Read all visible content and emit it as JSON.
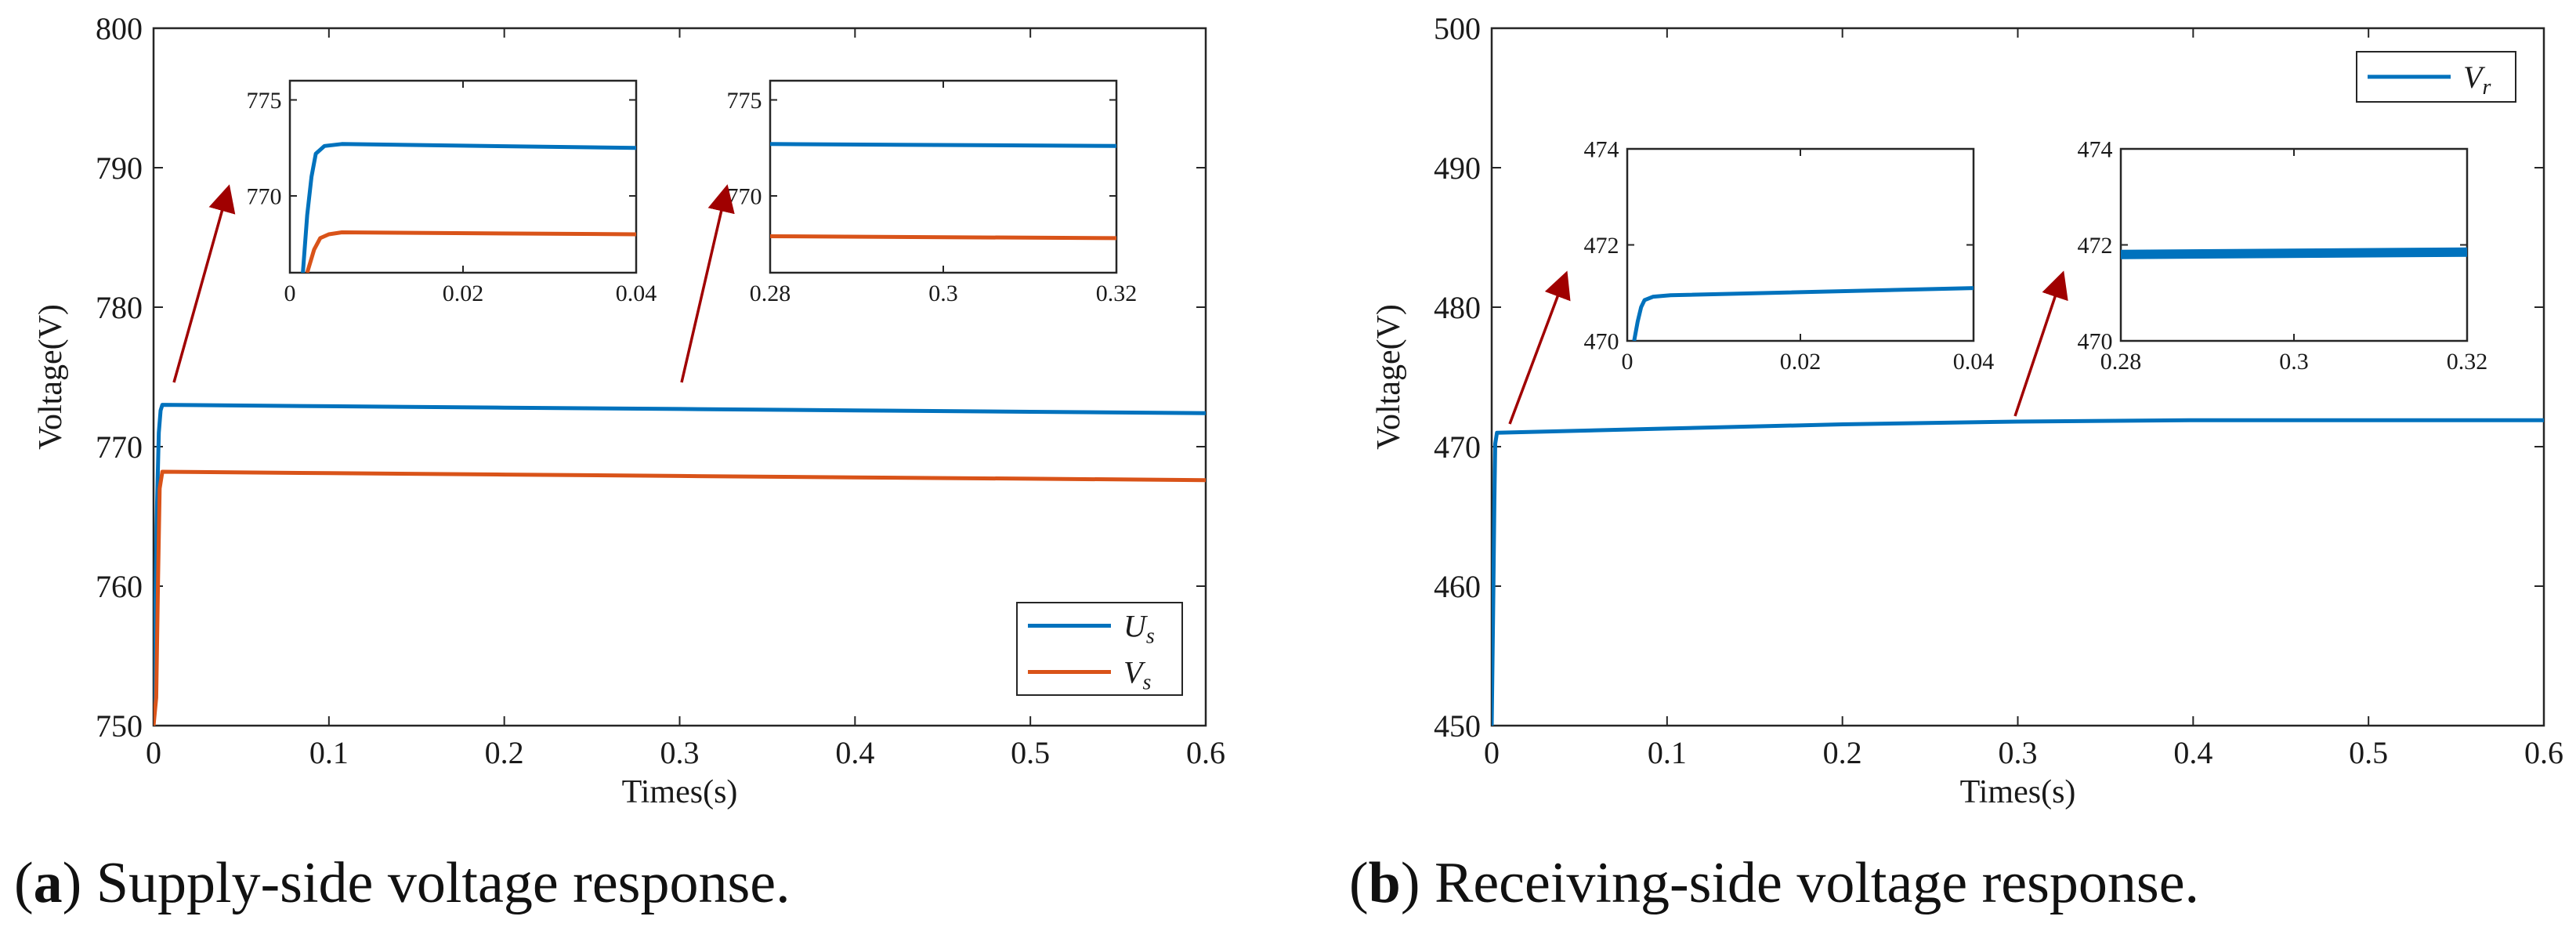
{
  "colors": {
    "blue": "#0072BD",
    "orange": "#D95319",
    "arrow": "#A00000",
    "axis": "#262626"
  },
  "chart_data": [
    {
      "id": "a",
      "type": "line",
      "caption_letter": "a",
      "caption_text": "Supply-side voltage response.",
      "xlabel": "Times(s)",
      "ylabel": "Voltage(V)",
      "xlim": [
        0,
        0.6
      ],
      "ylim": [
        750,
        800
      ],
      "xticks": [
        0,
        0.1,
        0.2,
        0.3,
        0.4,
        0.5,
        0.6
      ],
      "yticks": [
        750,
        760,
        770,
        780,
        790,
        800
      ],
      "legend_position": "bottom-right",
      "series": [
        {
          "name": "U_s",
          "legend_main": "U",
          "legend_sub": "s",
          "color": "#0072BD",
          "x": [
            0,
            0.001,
            0.002,
            0.003,
            0.004,
            0.005,
            0.1,
            0.2,
            0.3,
            0.4,
            0.5,
            0.6
          ],
          "y": [
            750,
            758,
            766,
            771,
            772.6,
            773,
            772.9,
            772.8,
            772.7,
            772.6,
            772.5,
            772.4
          ]
        },
        {
          "name": "V_s",
          "legend_main": "V",
          "legend_sub": "s",
          "color": "#D95319",
          "x": [
            0,
            0.0015,
            0.0025,
            0.0035,
            0.005,
            0.1,
            0.2,
            0.3,
            0.4,
            0.5,
            0.6
          ],
          "y": [
            750,
            752,
            760,
            767,
            768.2,
            768.1,
            768.0,
            767.9,
            767.8,
            767.7,
            767.6
          ]
        }
      ],
      "insets": [
        {
          "xlim": [
            0,
            0.04
          ],
          "ylim": [
            766,
            776
          ],
          "xticks": [
            0,
            0.02,
            0.04
          ],
          "xtick_labels": [
            "0",
            "0.02",
            "0.04"
          ],
          "yticks": [
            770,
            775
          ],
          "ytick_labels": [
            "770",
            "775"
          ],
          "series": [
            {
              "color": "#0072BD",
              "x": [
                0.0015,
                0.002,
                0.0025,
                0.003,
                0.004,
                0.006,
                0.04
              ],
              "y": [
                766,
                769,
                771,
                772.2,
                772.6,
                772.7,
                772.5
              ]
            },
            {
              "color": "#D95319",
              "x": [
                0.002,
                0.0028,
                0.0035,
                0.0045,
                0.006,
                0.04
              ],
              "y": [
                766,
                767.2,
                767.8,
                768.0,
                768.1,
                768.0
              ]
            }
          ]
        },
        {
          "xlim": [
            0.28,
            0.32
          ],
          "ylim": [
            766,
            776
          ],
          "xticks": [
            0.28,
            0.3,
            0.32
          ],
          "xtick_labels": [
            "0.28",
            "0.3",
            "0.32"
          ],
          "yticks": [
            770,
            775
          ],
          "ytick_labels": [
            "770",
            "775"
          ],
          "series": [
            {
              "color": "#0072BD",
              "x": [
                0.28,
                0.32
              ],
              "y": [
                772.7,
                772.6
              ]
            },
            {
              "color": "#D95319",
              "x": [
                0.28,
                0.32
              ],
              "y": [
                767.9,
                767.8
              ]
            }
          ]
        }
      ]
    },
    {
      "id": "b",
      "type": "line",
      "caption_letter": "b",
      "caption_text": "Receiving-side voltage response.",
      "xlabel": "Times(s)",
      "ylabel": "Voltage(V)",
      "xlim": [
        0,
        0.6
      ],
      "ylim": [
        450,
        500
      ],
      "xticks": [
        0,
        0.1,
        0.2,
        0.3,
        0.4,
        0.5,
        0.6
      ],
      "yticks": [
        450,
        460,
        470,
        480,
        490,
        500
      ],
      "legend_position": "top-right",
      "series": [
        {
          "name": "V_r",
          "legend_main": "V",
          "legend_sub": "r",
          "color": "#0072BD",
          "x": [
            0,
            0.0008,
            0.0015,
            0.002,
            0.003,
            0.1,
            0.2,
            0.3,
            0.4,
            0.5,
            0.6
          ],
          "y": [
            450,
            458,
            466,
            470.2,
            471,
            471.3,
            471.6,
            471.8,
            471.9,
            471.9,
            471.9
          ]
        }
      ],
      "insets": [
        {
          "xlim": [
            0,
            0.04
          ],
          "ylim": [
            470,
            474
          ],
          "xticks": [
            0,
            0.02,
            0.04
          ],
          "xtick_labels": [
            "0",
            "0.02",
            "0.04"
          ],
          "yticks": [
            470,
            472,
            474
          ],
          "ytick_labels": [
            "470",
            "472",
            "474"
          ],
          "series": [
            {
              "color": "#0072BD",
              "x": [
                0.0008,
                0.0012,
                0.0016,
                0.002,
                0.003,
                0.005,
                0.04
              ],
              "y": [
                470,
                470.4,
                470.7,
                470.85,
                470.92,
                470.95,
                471.1
              ]
            }
          ]
        },
        {
          "xlim": [
            0.28,
            0.32
          ],
          "ylim": [
            470,
            474
          ],
          "xticks": [
            0.28,
            0.3,
            0.32
          ],
          "xtick_labels": [
            "0.28",
            "0.3",
            "0.32"
          ],
          "yticks": [
            470,
            472,
            474
          ],
          "ytick_labels": [
            "470",
            "472",
            "474"
          ],
          "series": [
            {
              "color": "#0072BD",
              "x": [
                0.28,
                0.32
              ],
              "y": [
                471.8,
                471.85
              ],
              "thick": true
            }
          ]
        }
      ]
    }
  ]
}
